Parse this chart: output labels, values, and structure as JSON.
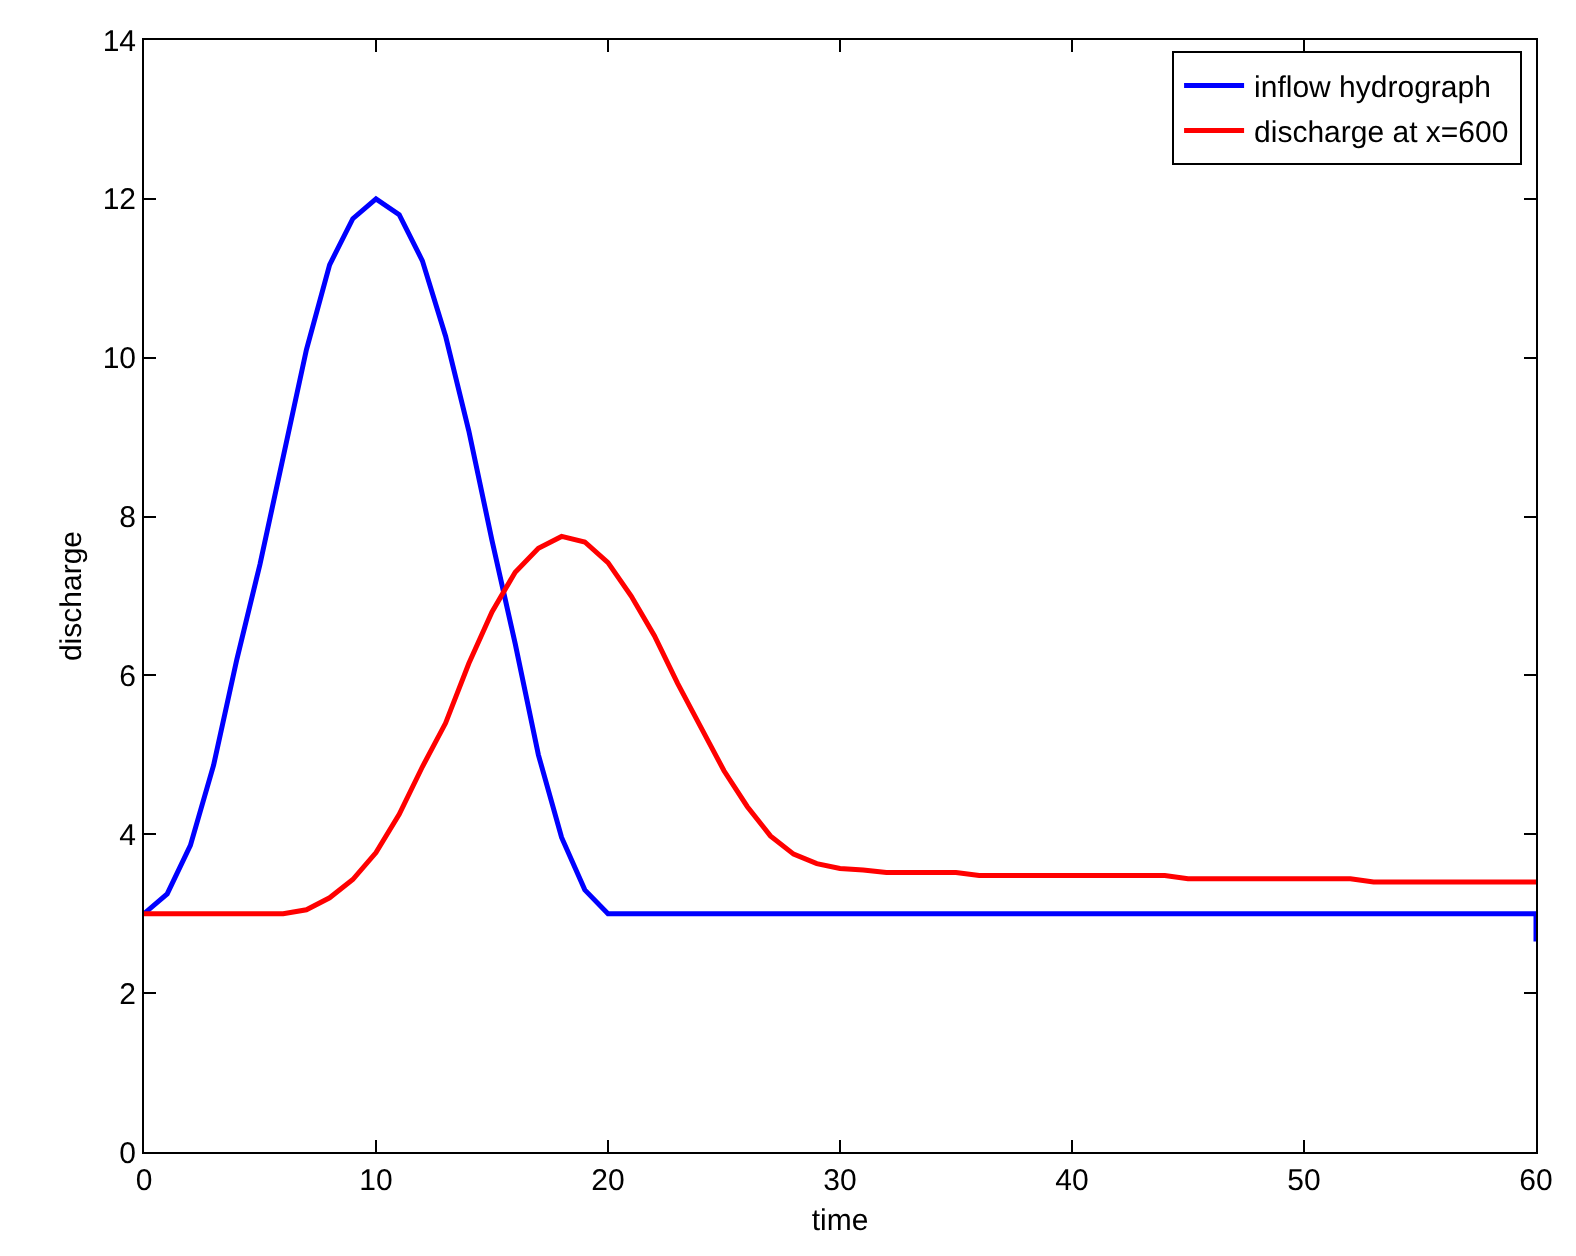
{
  "chart_data": {
    "type": "line",
    "xlabel": "time",
    "ylabel": "discharge",
    "xlim": [
      0,
      60
    ],
    "ylim": [
      0,
      14
    ],
    "xticks": [
      0,
      10,
      20,
      30,
      40,
      50,
      60
    ],
    "yticks": [
      0,
      2,
      4,
      6,
      8,
      10,
      12,
      14
    ],
    "grid": false,
    "legend": "top right",
    "marker": "none",
    "line_style": "solid",
    "series": [
      {
        "name": "inflow hydrograph",
        "color": "#0000ff",
        "x": [
          0,
          1,
          2,
          3,
          4,
          5,
          6,
          7,
          8,
          9,
          10,
          11,
          12,
          13,
          14,
          15,
          16,
          17,
          18,
          19,
          20,
          30,
          40,
          50,
          60,
          60
        ],
        "values": [
          3.0,
          3.25,
          3.86,
          4.87,
          6.2,
          7.4,
          8.75,
          10.1,
          11.17,
          11.75,
          12.0,
          11.8,
          11.22,
          10.27,
          9.08,
          7.7,
          6.4,
          5.0,
          3.96,
          3.3,
          3.0,
          3.0,
          3.0,
          3.0,
          3.0,
          2.65
        ]
      },
      {
        "name": "discharge at x=600",
        "color": "#ff0000",
        "x": [
          0,
          6,
          7,
          8,
          9,
          10,
          11,
          12,
          13,
          14,
          15,
          16,
          17,
          18,
          19,
          20,
          21,
          22,
          23,
          24,
          25,
          26,
          27,
          28,
          29,
          30,
          31,
          32,
          35,
          36,
          44,
          45,
          52,
          53,
          60
        ],
        "values": [
          3.0,
          3.0,
          3.05,
          3.2,
          3.43,
          3.77,
          4.25,
          4.85,
          5.4,
          6.15,
          6.8,
          7.3,
          7.6,
          7.75,
          7.68,
          7.42,
          7.0,
          6.5,
          5.9,
          5.35,
          4.8,
          4.35,
          3.98,
          3.75,
          3.63,
          3.57,
          3.55,
          3.52,
          3.52,
          3.48,
          3.48,
          3.44,
          3.44,
          3.4,
          3.4
        ]
      }
    ]
  }
}
